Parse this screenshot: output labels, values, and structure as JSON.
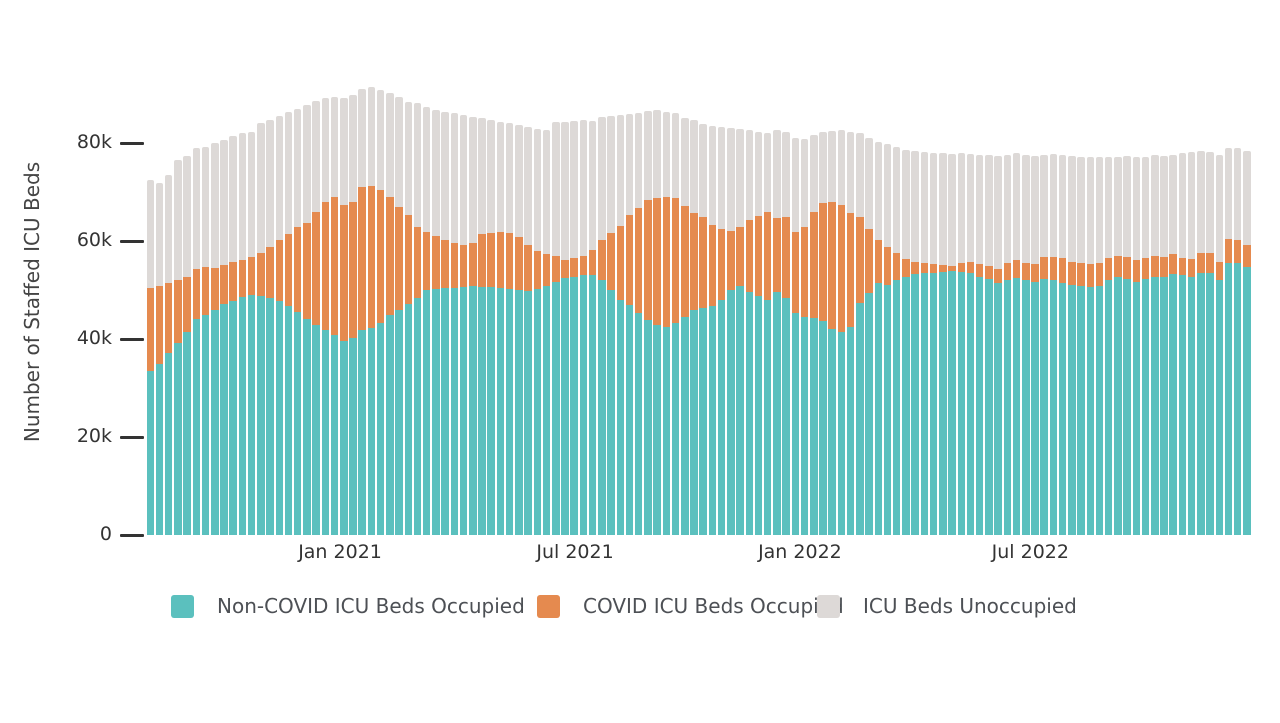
{
  "figure": {
    "y_axis": {
      "title": "Number of Staffed ICU Beds",
      "ticks": [
        {
          "label": "0",
          "value": 0
        },
        {
          "label": "20k",
          "value": 20000
        },
        {
          "label": "40k",
          "value": 40000
        },
        {
          "label": "60k",
          "value": 60000
        },
        {
          "label": "80k",
          "value": 80000
        }
      ]
    },
    "x_axis": {
      "ticks": [
        {
          "label": "Jan 2021",
          "index": 20.5
        },
        {
          "label": "Jul 2021",
          "index": 46.0
        },
        {
          "label": "Jan 2022",
          "index": 70.4
        },
        {
          "label": "Jul 2022",
          "index": 95.4
        }
      ]
    },
    "legend": {
      "items": [
        {
          "label": "Non-COVID ICU Beds Occupied",
          "color": "#5BC0BE",
          "x": 171
        },
        {
          "label": "COVID ICU Beds Occupied",
          "color": "#E58A4F",
          "x": 537
        },
        {
          "label": "ICU Beds Unoccupied",
          "color": "#DDD9D7",
          "x": 817
        }
      ]
    }
  },
  "chart_data": {
    "type": "bar",
    "stacked": true,
    "title": "",
    "xlabel": "",
    "ylabel": "Number of Staffed ICU Beds",
    "ylim": [
      0,
      80000
    ],
    "y_tick_labels": [
      "0",
      "20k",
      "40k",
      "60k",
      "80k"
    ],
    "x_tick_labels": [
      "Jan 2021",
      "Jul 2021",
      "Jan 2022",
      "Jul 2022"
    ],
    "x_unit": "weekly bars, approx. Aug 2020 through Dec 2022",
    "values_unit": "thousands of staffed ICU beds",
    "grid": false,
    "legend_position": "bottom",
    "series": [
      {
        "name": "Non-COVID ICU Beds Occupied",
        "color": "#5BC0BE",
        "values": [
          33.4,
          34.9,
          37.1,
          39.2,
          41.4,
          44.1,
          44.9,
          45.9,
          47.1,
          47.8,
          48.6,
          49.0,
          48.8,
          48.4,
          47.8,
          46.8,
          45.5,
          44.0,
          42.8,
          41.8,
          40.8,
          39.5,
          40.2,
          41.8,
          42.2,
          43.3,
          44.9,
          45.9,
          47.1,
          48.4,
          50.0,
          50.2,
          50.4,
          50.4,
          50.6,
          50.8,
          50.6,
          50.6,
          50.4,
          50.2,
          50.0,
          49.8,
          50.2,
          50.8,
          51.6,
          52.4,
          52.7,
          53.1,
          53.1,
          52.0,
          50.0,
          48.0,
          46.9,
          45.3,
          43.9,
          42.9,
          42.4,
          43.3,
          44.5,
          45.9,
          46.3,
          46.7,
          48.0,
          50.0,
          50.8,
          49.6,
          48.8,
          48.0,
          49.6,
          48.4,
          45.3,
          44.5,
          44.3,
          43.7,
          42.0,
          41.4,
          42.4,
          47.3,
          49.4,
          51.4,
          51.0,
          52.0,
          52.7,
          53.3,
          53.5,
          53.5,
          53.7,
          53.9,
          53.7,
          53.5,
          52.7,
          52.2,
          51.4,
          52.0,
          52.4,
          52.0,
          51.6,
          52.2,
          52.0,
          51.4,
          51.0,
          50.8,
          50.6,
          50.8,
          52.0,
          52.7,
          52.2,
          51.6,
          52.2,
          52.7,
          52.7,
          53.3,
          53.1,
          52.7,
          53.5,
          53.5,
          52.0,
          55.5,
          55.5,
          54.7
        ]
      },
      {
        "name": "COVID ICU Beds Occupied",
        "color": "#E58A4F",
        "values": [
          17.0,
          15.9,
          14.3,
          12.8,
          11.3,
          10.2,
          9.8,
          8.6,
          8.0,
          7.9,
          7.5,
          7.7,
          8.8,
          10.4,
          12.4,
          14.6,
          17.4,
          19.7,
          23.2,
          26.2,
          28.2,
          27.8,
          27.8,
          29.2,
          29.0,
          27.1,
          24.1,
          21.0,
          18.2,
          14.5,
          11.8,
          10.8,
          9.8,
          9.2,
          8.6,
          8.8,
          10.8,
          11.0,
          11.4,
          11.4,
          10.8,
          9.4,
          7.8,
          6.5,
          5.3,
          3.7,
          3.8,
          3.8,
          5.1,
          8.2,
          11.6,
          15.1,
          18.4,
          21.4,
          24.5,
          25.9,
          26.6,
          25.5,
          22.6,
          19.8,
          18.6,
          16.6,
          14.4,
          12.0,
          12.1,
          14.7,
          16.3,
          18.0,
          15.1,
          16.5,
          16.5,
          18.4,
          21.6,
          24.1,
          26.0,
          25.9,
          23.3,
          17.6,
          13.0,
          8.8,
          7.8,
          5.6,
          3.6,
          2.4,
          2.0,
          1.8,
          1.4,
          1.0,
          1.8,
          2.2,
          2.6,
          2.7,
          2.9,
          3.5,
          3.7,
          3.5,
          3.7,
          4.5,
          4.7,
          5.1,
          4.7,
          4.7,
          4.7,
          4.7,
          4.5,
          4.2,
          4.5,
          4.5,
          4.3,
          4.2,
          4.0,
          4.0,
          3.4,
          3.6,
          4.1,
          4.1,
          3.7,
          4.9,
          4.7,
          4.5
        ]
      },
      {
        "name": "ICU Beds Unoccupied",
        "color": "#DDD9D7",
        "values": [
          22.0,
          21.0,
          22.1,
          24.5,
          24.6,
          24.7,
          24.5,
          25.5,
          25.5,
          25.7,
          25.9,
          25.5,
          26.5,
          25.9,
          25.3,
          24.9,
          24.0,
          24.1,
          22.6,
          21.2,
          20.4,
          21.9,
          21.8,
          20.0,
          20.2,
          20.4,
          21.2,
          22.5,
          23.1,
          25.3,
          25.5,
          25.7,
          26.1,
          26.5,
          26.5,
          25.7,
          23.7,
          23.1,
          22.5,
          22.5,
          22.9,
          24.1,
          24.9,
          25.4,
          27.4,
          28.2,
          28.0,
          27.8,
          26.3,
          25.1,
          23.9,
          22.6,
          20.6,
          19.4,
          18.1,
          17.9,
          17.3,
          17.3,
          18.0,
          19.0,
          19.0,
          20.2,
          20.9,
          21.1,
          20.0,
          18.4,
          17.1,
          16.0,
          18.0,
          17.3,
          19.2,
          17.9,
          15.7,
          14.4,
          14.4,
          15.4,
          16.5,
          17.1,
          18.6,
          20.0,
          21.0,
          21.6,
          22.3,
          22.7,
          22.7,
          22.7,
          22.9,
          22.8,
          22.5,
          22.0,
          22.3,
          22.7,
          23.0,
          22.1,
          21.9,
          22.1,
          22.0,
          20.9,
          21.0,
          21.1,
          21.6,
          21.6,
          21.8,
          21.6,
          20.6,
          20.2,
          20.6,
          21.0,
          20.6,
          20.7,
          20.6,
          20.3,
          21.5,
          21.9,
          20.8,
          20.6,
          21.9,
          18.6,
          18.8,
          19.2
        ]
      }
    ]
  }
}
